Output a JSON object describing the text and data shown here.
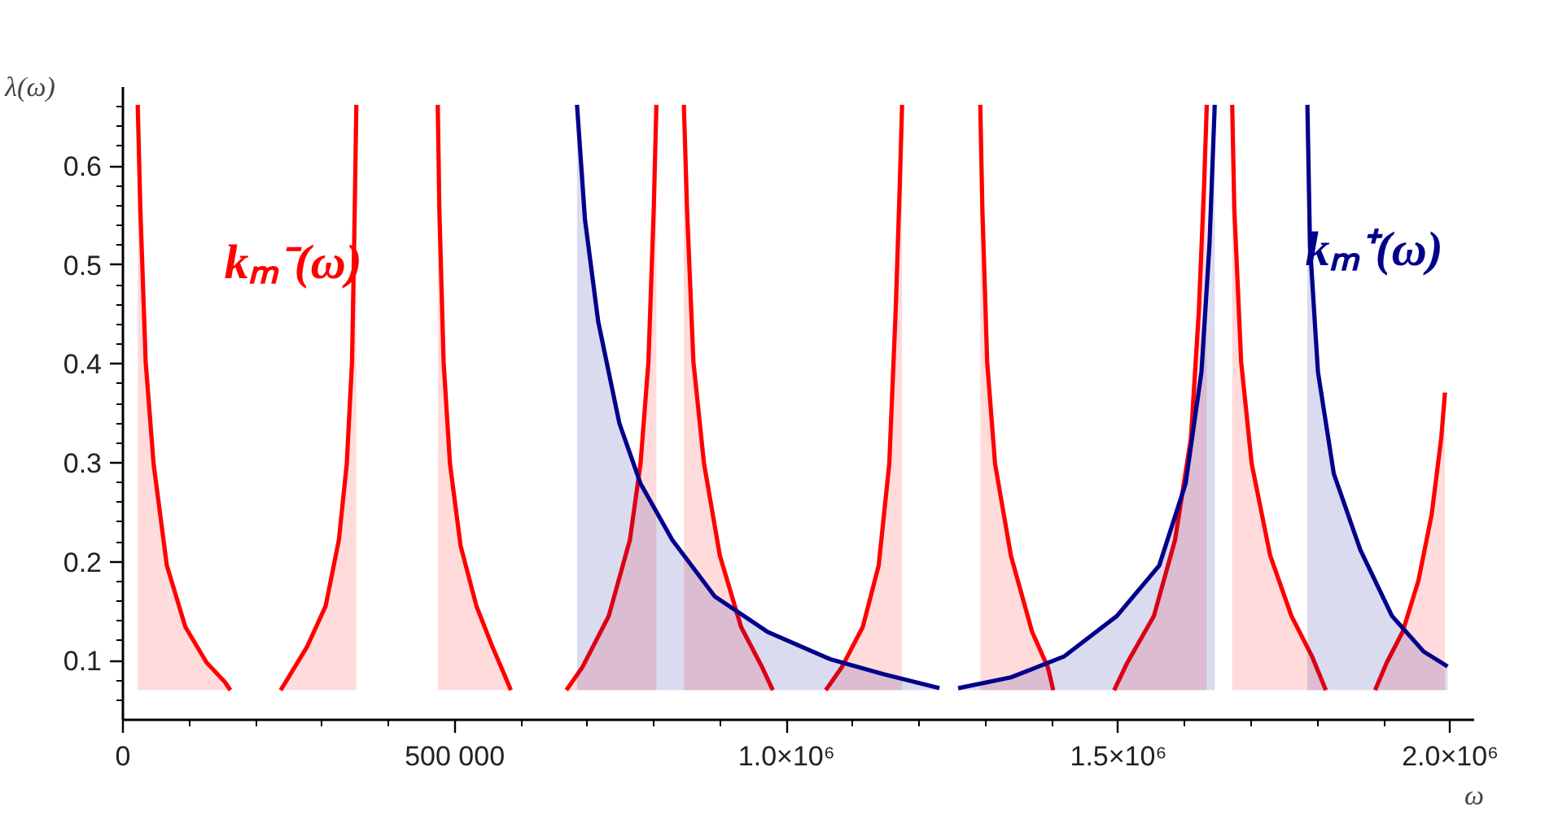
{
  "chart_data": {
    "type": "area",
    "xlabel": "ω",
    "ylabel": "λ(ω)",
    "xlim": [
      0,
      2036000
    ],
    "ylim": [
      0.04,
      0.68
    ],
    "xticks": [
      0,
      {
        "value": 500000,
        "label": "500 000"
      },
      {
        "value": 1000000,
        "label": "1.0×10⁶"
      },
      {
        "value": 1500000,
        "label": "1.5×10⁶"
      },
      {
        "value": 2000000,
        "label": "2.0×10⁶"
      }
    ],
    "yticks": [
      0.1,
      0.2,
      0.3,
      0.4,
      0.5,
      0.6
    ],
    "series": [
      {
        "name": "kₘ⁻(ω)",
        "color": "#ff0000",
        "x": [
          22300,
          26300,
          34300,
          46200,
          66200,
          94100,
          126000,
          153900,
          161900,
          200000,
          237600,
          249600,
          277500,
          305400,
          325400,
          337300,
          345200,
          349300,
          351700,
          410000,
          474400,
          476800,
          483200,
          492800,
          508800,
          532700,
          556700,
          576500,
          584500,
          620000,
          668200,
          692100,
          732000,
          763900,
          779900,
          791800,
          799800,
          803800,
          825000,
          845200,
          850000,
          859600,
          875600,
          899500,
          931400,
          963300,
          979200,
          1020000,
          1059000,
          1083000,
          1114800,
          1138700,
          1154700,
          1164300,
          1170600,
          1174000,
          1230000,
          1291800,
          1295000,
          1302200,
          1314100,
          1338000,
          1369900,
          1393800,
          1401800,
          1450000,
          1493500,
          1513500,
          1553400,
          1585300,
          1609200,
          1621100,
          1629100,
          1633100,
          1650000,
          1671400,
          1674600,
          1684900,
          1700800,
          1728700,
          1760700,
          1792500,
          1812500,
          1850000,
          1886700,
          1904300,
          1928200,
          1952100,
          1972000,
          1986400,
          1992000
        ],
        "values": [
          0.662,
          0.556,
          0.402,
          0.299,
          0.196,
          0.134,
          0.098,
          0.078,
          0.07,
          null,
          0.07,
          0.083,
          0.114,
          0.155,
          0.222,
          0.299,
          0.402,
          0.556,
          0.662,
          null,
          0.662,
          0.556,
          0.402,
          0.299,
          0.216,
          0.155,
          0.114,
          0.083,
          0.07,
          null,
          0.07,
          0.093,
          0.145,
          0.222,
          0.299,
          0.402,
          0.556,
          0.662,
          null,
          0.662,
          0.556,
          0.402,
          0.299,
          0.206,
          0.134,
          0.093,
          0.07,
          null,
          0.07,
          0.093,
          0.134,
          0.196,
          0.299,
          0.453,
          0.582,
          0.662,
          null,
          0.662,
          0.556,
          0.402,
          0.299,
          0.206,
          0.129,
          0.093,
          0.07,
          null,
          0.07,
          0.098,
          0.145,
          0.222,
          0.325,
          0.453,
          0.582,
          0.662,
          null,
          0.662,
          0.556,
          0.402,
          0.299,
          0.206,
          0.145,
          0.103,
          0.07,
          null,
          0.07,
          0.098,
          0.129,
          0.181,
          0.248,
          0.325,
          0.371
        ]
      },
      {
        "name": "kₘ⁺(ω)",
        "color": "#00008b",
        "x": [
          684200,
          696200,
          716100,
          748000,
          779900,
          827700,
          891500,
          971300,
          1067000,
          1146700,
          1230300,
          1245000,
          1258400,
          1338000,
          1417800,
          1497600,
          1561400,
          1601200,
          1625100,
          1637100,
          1645100,
          1715000,
          1784700,
          1788600,
          1800600,
          1824500,
          1864400,
          1912200,
          1960000,
          1995900
        ],
        "values": [
          0.662,
          0.546,
          0.443,
          0.34,
          0.279,
          0.222,
          0.165,
          0.129,
          0.101,
          0.086,
          0.072,
          null,
          0.072,
          0.083,
          0.104,
          0.145,
          0.196,
          0.279,
          0.392,
          0.52,
          0.662,
          null,
          0.662,
          0.52,
          0.392,
          0.289,
          0.212,
          0.145,
          0.109,
          0.094
        ]
      }
    ]
  }
}
